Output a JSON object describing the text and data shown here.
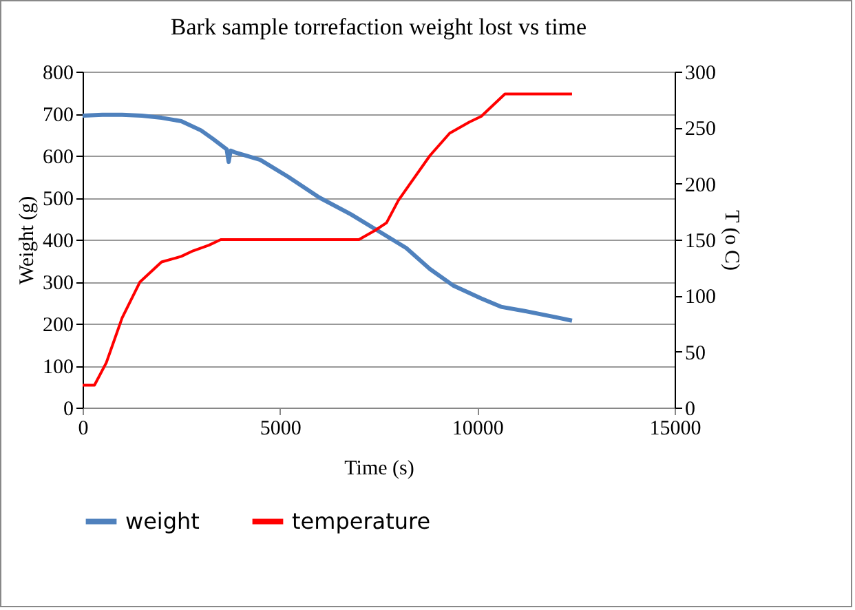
{
  "chart_data": {
    "type": "line",
    "title": "Bark sample torrefaction weight lost vs time",
    "xlabel": "Time (s)",
    "ylabel": "Weight (g)",
    "y2label": "T (o C)",
    "xlim": [
      0,
      15000
    ],
    "xticks": [
      0,
      5000,
      10000,
      15000
    ],
    "ylim": [
      0,
      800
    ],
    "yticks": [
      0,
      100,
      200,
      300,
      400,
      500,
      600,
      700,
      800
    ],
    "y2lim": [
      0,
      300
    ],
    "y2ticks": [
      0,
      50,
      100,
      150,
      200,
      250,
      300
    ],
    "grid": "y",
    "legend": "bottom",
    "marker": "none",
    "line_style": "solid",
    "series": [
      {
        "name": "weight",
        "color": "#4f81bd",
        "x": [
          0,
          500,
          1000,
          1500,
          2000,
          2500,
          3000,
          3300,
          3650,
          3700,
          3750,
          3850,
          4500,
          5200,
          6000,
          6800,
          7500,
          8200,
          8800,
          9400,
          10100,
          10600,
          11200,
          12000,
          12400
        ],
        "values": [
          695,
          697,
          697,
          695,
          690,
          682,
          660,
          640,
          615,
          585,
          612,
          608,
          590,
          550,
          500,
          460,
          420,
          380,
          330,
          290,
          260,
          240,
          230,
          215,
          207
        ]
      },
      {
        "name": "temperature",
        "color": "#ff0000",
        "axis": "y2",
        "x": [
          0,
          300,
          600,
          1000,
          1450,
          2000,
          2500,
          2800,
          3200,
          3500,
          7000,
          7400,
          7700,
          8000,
          8300,
          8800,
          9300,
          9800,
          10100,
          10400,
          10700,
          12400
        ],
        "values": [
          20,
          20,
          40,
          80,
          112,
          130,
          135,
          140,
          145,
          150,
          150,
          158,
          165,
          185,
          200,
          225,
          245,
          255,
          260,
          270,
          280,
          280
        ]
      }
    ]
  }
}
